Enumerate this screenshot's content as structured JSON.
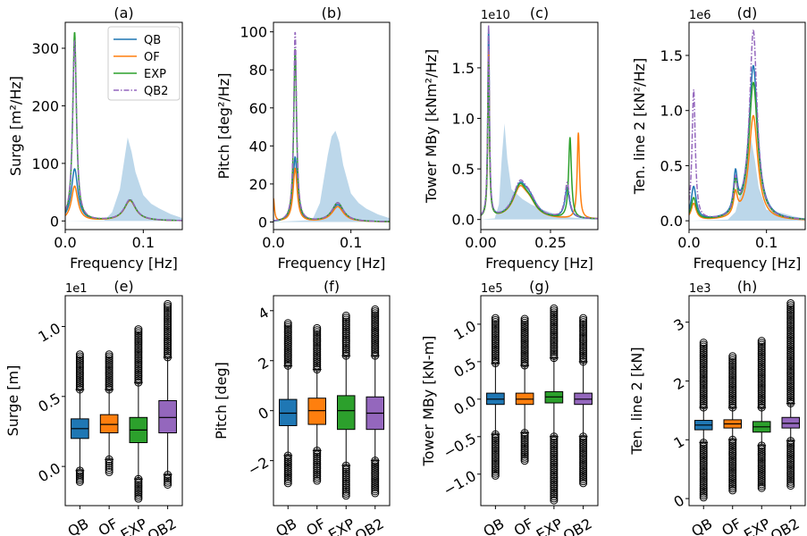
{
  "chart_data": [
    {
      "type": "line",
      "title": "(a)",
      "xlabel": "Frequency [Hz]",
      "ylabel": "Surge [m²/Hz]",
      "xlim": [
        0,
        0.15
      ],
      "ylim": [
        -15,
        345
      ],
      "xticks": [
        0.0,
        0.1
      ],
      "xticklabels": [
        "0.0",
        "0.1"
      ],
      "yticks": [
        0,
        100,
        200,
        300
      ],
      "yticklabels": [
        "0",
        "100",
        "200",
        "300"
      ],
      "legend": {
        "position": "top-right",
        "entries": [
          "QB",
          "OF",
          "EXP",
          "QB2"
        ]
      },
      "wave_spectrum": {
        "x": [
          0,
          0.05,
          0.06,
          0.07,
          0.075,
          0.08,
          0.085,
          0.09,
          0.1,
          0.11,
          0.12,
          0.135,
          0.15
        ],
        "y": [
          0,
          1,
          15,
          55,
          100,
          145,
          120,
          85,
          45,
          30,
          22,
          12,
          5
        ]
      },
      "series": [
        {
          "name": "QB",
          "peaks": [
            {
              "f": 0.012,
              "amp": 90,
              "w": 0.005
            },
            {
              "f": 0.083,
              "amp": 35,
              "w": 0.009
            }
          ]
        },
        {
          "name": "OF",
          "peaks": [
            {
              "f": 0.012,
              "amp": 60,
              "w": 0.005
            },
            {
              "f": 0.083,
              "amp": 35,
              "w": 0.009
            }
          ]
        },
        {
          "name": "EXP",
          "peaks": [
            {
              "f": 0.012,
              "amp": 328,
              "w": 0.0028
            },
            {
              "f": 0.083,
              "amp": 36,
              "w": 0.009
            }
          ]
        },
        {
          "name": "QB2",
          "peaks": [
            {
              "f": 0.012,
              "amp": 312,
              "w": 0.003
            },
            {
              "f": 0.083,
              "amp": 37,
              "w": 0.009
            }
          ]
        }
      ]
    },
    {
      "type": "line",
      "title": "(b)",
      "xlabel": "Frequency [Hz]",
      "ylabel": "Pitch [deg²/Hz]",
      "xlim": [
        0,
        0.15
      ],
      "ylim": [
        -4,
        105
      ],
      "xticks": [
        0.0,
        0.1
      ],
      "xticklabels": [
        "0.0",
        "0.1"
      ],
      "yticks": [
        0,
        20,
        40,
        60,
        80,
        100
      ],
      "yticklabels": [
        "0",
        "20",
        "40",
        "60",
        "80",
        "100"
      ],
      "wave_spectrum": {
        "x": [
          0,
          0.05,
          0.06,
          0.07,
          0.075,
          0.08,
          0.085,
          0.09,
          0.1,
          0.11,
          0.12,
          0.135,
          0.15
        ],
        "y": [
          0,
          1,
          10,
          35,
          45,
          48,
          42,
          30,
          15,
          10,
          7,
          4,
          2
        ]
      },
      "series": [
        {
          "name": "QB",
          "peaks": [
            {
              "f": 0.028,
              "amp": 34,
              "w": 0.0032
            },
            {
              "f": 0.083,
              "amp": 9,
              "w": 0.009
            }
          ]
        },
        {
          "name": "OF",
          "peaks": [
            {
              "f": 0.028,
              "amp": 28,
              "w": 0.0032
            },
            {
              "f": 0.083,
              "amp": 8,
              "w": 0.009
            },
            {
              "f": 0,
              "amp": 12,
              "w": 0.0015
            }
          ]
        },
        {
          "name": "EXP",
          "peaks": [
            {
              "f": 0.028,
              "amp": 91,
              "w": 0.0022
            },
            {
              "f": 0.083,
              "amp": 10,
              "w": 0.009
            }
          ]
        },
        {
          "name": "QB2",
          "peaks": [
            {
              "f": 0.028,
              "amp": 100,
              "w": 0.0022
            },
            {
              "f": 0.083,
              "amp": 10,
              "w": 0.009
            }
          ]
        }
      ]
    },
    {
      "type": "line",
      "title": "(c)",
      "xlabel": "Frequency [Hz]",
      "ylabel": "Tower MBy [kNm²/Hz]",
      "offset_text": "1e10",
      "xlim": [
        0,
        0.42
      ],
      "ylim": [
        -0.1,
        1.95
      ],
      "xticks": [
        0.0,
        0.25
      ],
      "xticklabels": [
        "0.00",
        "0.25"
      ],
      "yticks": [
        0,
        0.5,
        1.0,
        1.5
      ],
      "yticklabels": [
        "0.0",
        "0.5",
        "1.0",
        "1.5"
      ],
      "wave_spectrum": {
        "x": [
          0,
          0.05,
          0.065,
          0.075,
          0.085,
          0.095,
          0.11,
          0.13,
          0.15,
          0.18,
          0.22,
          0.27,
          0.32,
          0.42
        ],
        "y": [
          0,
          0.01,
          0.15,
          0.6,
          0.95,
          0.6,
          0.3,
          0.25,
          0.2,
          0.15,
          0.1,
          0.05,
          0.02,
          0
        ]
      },
      "series": [
        {
          "name": "QB",
          "peaks": [
            {
              "f": 0.028,
              "amp": 1.88,
              "w": 0.0035
            },
            {
              "f": 0.14,
              "amp": 0.3,
              "w": 0.03
            },
            {
              "f": 0.31,
              "amp": 0.3,
              "w": 0.01
            },
            {
              "f": 0.175,
              "amp": 0.15,
              "w": 0.03
            }
          ]
        },
        {
          "name": "OF",
          "peaks": [
            {
              "f": 0.028,
              "amp": 1.65,
              "w": 0.0035
            },
            {
              "f": 0.14,
              "amp": 0.28,
              "w": 0.03
            },
            {
              "f": 0.35,
              "amp": 0.85,
              "w": 0.005
            },
            {
              "f": 0.175,
              "amp": 0.12,
              "w": 0.03
            }
          ]
        },
        {
          "name": "EXP",
          "peaks": [
            {
              "f": 0.028,
              "amp": 1.55,
              "w": 0.0035
            },
            {
              "f": 0.14,
              "amp": 0.3,
              "w": 0.03
            },
            {
              "f": 0.32,
              "amp": 0.8,
              "w": 0.006
            },
            {
              "f": 0.175,
              "amp": 0.12,
              "w": 0.03
            }
          ]
        },
        {
          "name": "QB2",
          "peaks": [
            {
              "f": 0.028,
              "amp": 1.9,
              "w": 0.0035
            },
            {
              "f": 0.14,
              "amp": 0.32,
              "w": 0.03
            },
            {
              "f": 0.31,
              "amp": 0.35,
              "w": 0.01
            },
            {
              "f": 0.175,
              "amp": 0.15,
              "w": 0.03
            }
          ]
        }
      ]
    },
    {
      "type": "line",
      "title": "(d)",
      "xlabel": "Frequency [Hz]",
      "ylabel": "Ten. line 2 [kN²/Hz]",
      "offset_text": "1e6",
      "xlim": [
        0,
        0.15
      ],
      "ylim": [
        -0.08,
        1.8
      ],
      "xticks": [
        0.0,
        0.1
      ],
      "xticklabels": [
        "0.0",
        "0.1"
      ],
      "yticks": [
        0,
        0.5,
        1.0,
        1.5
      ],
      "yticklabels": [
        "0.0",
        "0.5",
        "1.0",
        "1.5"
      ],
      "wave_spectrum": {
        "x": [
          0,
          0.05,
          0.06,
          0.07,
          0.075,
          0.08,
          0.085,
          0.09,
          0.1,
          0.11,
          0.12,
          0.135,
          0.15
        ],
        "y": [
          0,
          0.01,
          0.08,
          0.35,
          0.6,
          0.75,
          0.55,
          0.3,
          0.1,
          0.08,
          0.07,
          0.04,
          0.02
        ]
      },
      "series": [
        {
          "name": "QB",
          "peaks": [
            {
              "f": 0.006,
              "amp": 0.3,
              "w": 0.004
            },
            {
              "f": 0.083,
              "amp": 1.4,
              "w": 0.007
            },
            {
              "f": 0.06,
              "amp": 0.35,
              "w": 0.003
            }
          ]
        },
        {
          "name": "OF",
          "peaks": [
            {
              "f": 0.006,
              "amp": 0.15,
              "w": 0.004
            },
            {
              "f": 0.083,
              "amp": 0.95,
              "w": 0.007
            },
            {
              "f": 0.06,
              "amp": 0.2,
              "w": 0.003
            }
          ]
        },
        {
          "name": "EXP",
          "peaks": [
            {
              "f": 0.006,
              "amp": 0.2,
              "w": 0.004
            },
            {
              "f": 0.083,
              "amp": 1.25,
              "w": 0.007
            },
            {
              "f": 0.06,
              "amp": 0.28,
              "w": 0.003
            }
          ]
        },
        {
          "name": "QB2",
          "peaks": [
            {
              "f": 0.006,
              "amp": 1.18,
              "w": 0.0025
            },
            {
              "f": 0.083,
              "amp": 1.72,
              "w": 0.006
            },
            {
              "f": 0.06,
              "amp": 0.3,
              "w": 0.003
            }
          ]
        }
      ]
    },
    {
      "type": "box",
      "title": "(e)",
      "ylabel": "Surge [m]",
      "offset_text": "1e1",
      "ylim": [
        -0.28,
        1.22
      ],
      "yticks": [
        0.0,
        0.5,
        1.0
      ],
      "yticklabels": [
        "0.0",
        "0.5",
        "1.0"
      ],
      "categories": [
        "QB",
        "OF",
        "EXP",
        "QB2"
      ],
      "boxes": [
        {
          "name": "QB",
          "q1": 0.2,
          "median": 0.27,
          "q3": 0.34,
          "whislo": -0.03,
          "whishi": 0.55,
          "fliers": [
            -0.11,
            0.8
          ]
        },
        {
          "name": "OF",
          "q1": 0.24,
          "median": 0.3,
          "q3": 0.37,
          "whislo": 0.05,
          "whishi": 0.55,
          "fliers": [
            -0.04,
            0.8
          ]
        },
        {
          "name": "EXP",
          "q1": 0.17,
          "median": 0.26,
          "q3": 0.35,
          "whislo": -0.09,
          "whishi": 0.6,
          "fliers": [
            -0.23,
            0.98
          ]
        },
        {
          "name": "QB2",
          "q1": 0.24,
          "median": 0.35,
          "q3": 0.47,
          "whislo": -0.06,
          "whishi": 0.78,
          "fliers": [
            -0.13,
            1.16
          ]
        }
      ]
    },
    {
      "type": "box",
      "title": "(f)",
      "ylabel": "Pitch [deg]",
      "ylim": [
        -3.8,
        4.6
      ],
      "yticks": [
        -2,
        0,
        2,
        4
      ],
      "yticklabels": [
        "−2",
        "0",
        "2",
        "4"
      ],
      "categories": [
        "QB",
        "OF",
        "EXP",
        "QB2"
      ],
      "boxes": [
        {
          "name": "QB",
          "q1": -0.6,
          "median": -0.1,
          "q3": 0.45,
          "whislo": -1.8,
          "whishi": 1.8,
          "fliers": [
            -2.9,
            3.5
          ]
        },
        {
          "name": "OF",
          "q1": -0.55,
          "median": 0.0,
          "q3": 0.5,
          "whislo": -1.6,
          "whishi": 1.65,
          "fliers": [
            -2.8,
            3.3
          ]
        },
        {
          "name": "EXP",
          "q1": -0.75,
          "median": 0.0,
          "q3": 0.6,
          "whislo": -2.2,
          "whishi": 2.2,
          "fliers": [
            -3.4,
            3.8
          ]
        },
        {
          "name": "QB2",
          "q1": -0.75,
          "median": -0.1,
          "q3": 0.55,
          "whislo": -2.0,
          "whishi": 2.2,
          "fliers": [
            -3.3,
            4.05
          ]
        }
      ]
    },
    {
      "type": "box",
      "title": "(g)",
      "ylabel": "Tower MBy [kN-m]",
      "offset_text": "1e5",
      "ylim": [
        -1.42,
        1.38
      ],
      "yticks": [
        -1.0,
        -0.5,
        0.0,
        0.5,
        1.0
      ],
      "yticklabels": [
        "−1.0",
        "−0.5",
        "0.0",
        "0.5",
        "1.0"
      ],
      "categories": [
        "QB",
        "OF",
        "EXP",
        "QB2"
      ],
      "boxes": [
        {
          "name": "QB",
          "q1": -0.07,
          "median": 0.0,
          "q3": 0.08,
          "whislo": -0.47,
          "whishi": 0.48,
          "fliers": [
            -1.02,
            1.08
          ]
        },
        {
          "name": "OF",
          "q1": -0.07,
          "median": 0.0,
          "q3": 0.08,
          "whislo": -0.45,
          "whishi": 0.45,
          "fliers": [
            -0.82,
            1.07
          ]
        },
        {
          "name": "EXP",
          "q1": -0.05,
          "median": 0.03,
          "q3": 0.1,
          "whislo": -0.5,
          "whishi": 0.55,
          "fliers": [
            -1.35,
            1.21
          ]
        },
        {
          "name": "QB2",
          "q1": -0.07,
          "median": 0.0,
          "q3": 0.08,
          "whislo": -0.5,
          "whishi": 0.5,
          "fliers": [
            -1.12,
            1.08
          ]
        }
      ]
    },
    {
      "type": "box",
      "title": "(h)",
      "ylabel": "Ten. line 2 [kN]",
      "offset_text": "1e3",
      "ylim": [
        -0.12,
        3.45
      ],
      "yticks": [
        0,
        1,
        2,
        3
      ],
      "yticklabels": [
        "0",
        "1",
        "2",
        "3"
      ],
      "categories": [
        "QB",
        "OF",
        "EXP",
        "QB2"
      ],
      "boxes": [
        {
          "name": "QB",
          "q1": 1.17,
          "median": 1.25,
          "q3": 1.33,
          "whislo": 0.95,
          "whishi": 1.55,
          "fliers": [
            0.02,
            2.65
          ]
        },
        {
          "name": "OF",
          "q1": 1.2,
          "median": 1.27,
          "q3": 1.34,
          "whislo": 1.0,
          "whishi": 1.55,
          "fliers": [
            0.14,
            2.42
          ]
        },
        {
          "name": "EXP",
          "q1": 1.13,
          "median": 1.22,
          "q3": 1.31,
          "whislo": 0.9,
          "whishi": 1.55,
          "fliers": [
            0.18,
            2.68
          ]
        },
        {
          "name": "QB2",
          "q1": 1.2,
          "median": 1.28,
          "q3": 1.38,
          "whislo": 0.98,
          "whishi": 1.62,
          "fliers": [
            0.22,
            3.32
          ]
        }
      ]
    }
  ],
  "colors": {
    "QB": "#1f77b4",
    "OF": "#ff7f0e",
    "EXP": "#2ca02c",
    "QB2": "#9467bd",
    "wave_fill": "#a6c9e3"
  }
}
